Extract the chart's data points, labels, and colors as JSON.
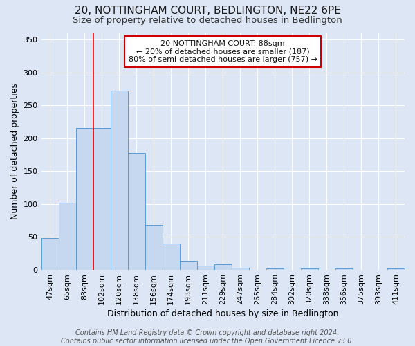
{
  "title1": "20, NOTTINGHAM COURT, BEDLINGTON, NE22 6PE",
  "title2": "Size of property relative to detached houses in Bedlington",
  "xlabel": "Distribution of detached houses by size in Bedlington",
  "ylabel": "Number of detached properties",
  "footer": "Contains HM Land Registry data © Crown copyright and database right 2024.\nContains public sector information licensed under the Open Government Licence v3.0.",
  "categories": [
    "47sqm",
    "65sqm",
    "83sqm",
    "102sqm",
    "120sqm",
    "138sqm",
    "156sqm",
    "174sqm",
    "193sqm",
    "211sqm",
    "229sqm",
    "247sqm",
    "265sqm",
    "284sqm",
    "302sqm",
    "320sqm",
    "338sqm",
    "356sqm",
    "375sqm",
    "393sqm",
    "411sqm"
  ],
  "bar_values": [
    48,
    102,
    215,
    215,
    272,
    178,
    68,
    40,
    14,
    6,
    8,
    3,
    0,
    2,
    0,
    2,
    0,
    2,
    0,
    0,
    2
  ],
  "bar_color": "#c5d8f0",
  "bar_edge_color": "#5b9bd5",
  "background_color": "#dce6f5",
  "grid_color": "#ffffff",
  "red_line_x": 2.5,
  "annotation_text": "  20 NOTTINGHAM COURT: 88sqm  \n← 20% of detached houses are smaller (187)\n80% of semi-detached houses are larger (757) →",
  "annotation_box_color": "#ffffff",
  "annotation_box_edge_color": "#cc0000",
  "ylim": [
    0,
    360
  ],
  "yticks": [
    0,
    50,
    100,
    150,
    200,
    250,
    300,
    350
  ],
  "title1_fontsize": 11,
  "title2_fontsize": 9.5,
  "xlabel_fontsize": 9,
  "ylabel_fontsize": 9,
  "tick_fontsize": 8,
  "footer_fontsize": 7,
  "annot_fontsize": 8
}
